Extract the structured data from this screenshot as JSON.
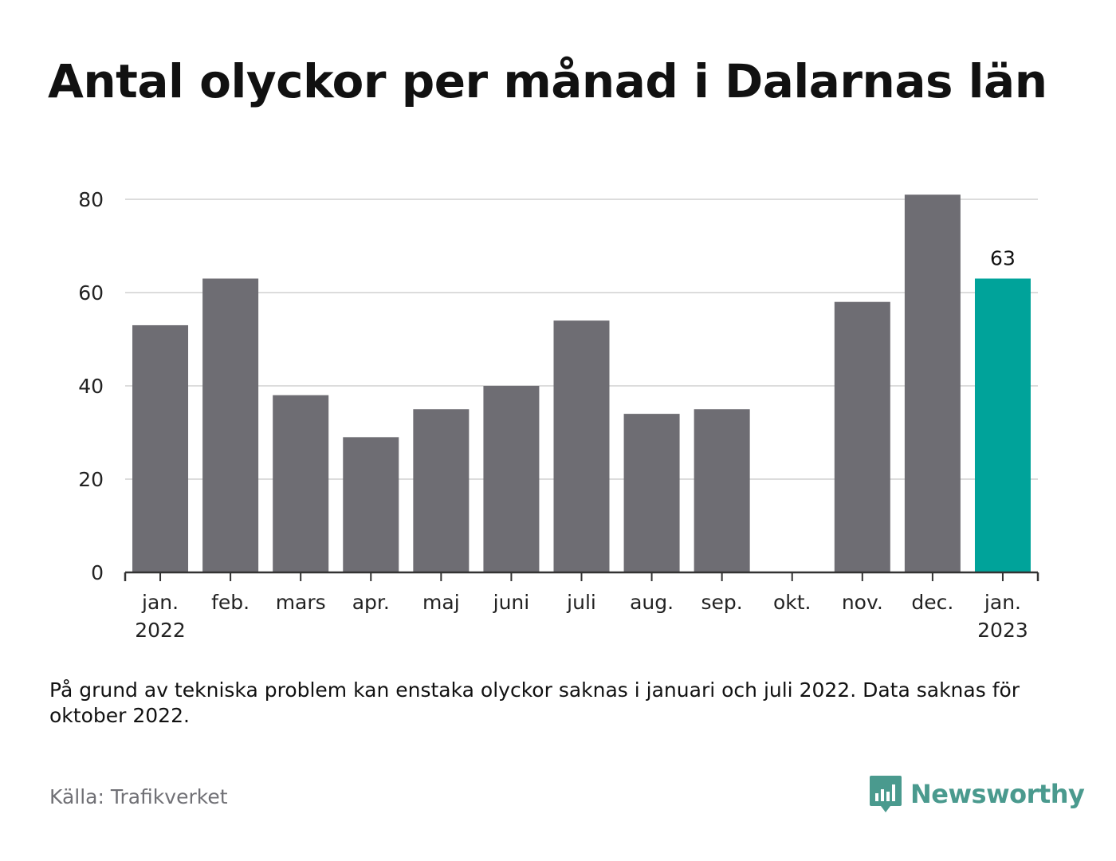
{
  "title": "Antal olyckor per månad i Dalarnas län",
  "note": "På grund av tekniska problem kan enstaka olyckor saknas i januari och juli 2022. Data saknas för oktober 2022.",
  "source": "Källa: Trafikverket",
  "logo": {
    "name": "Newsworthy",
    "icon": "newsworthy-logo-icon"
  },
  "colors": {
    "bar": "#6e6d73",
    "highlight": "#00a39a",
    "grid": "#dcdcdc",
    "axis": "#333333",
    "logo": "#4a9a8e"
  },
  "chart_data": {
    "type": "bar",
    "categories": [
      [
        "jan.",
        "2022"
      ],
      [
        "feb."
      ],
      [
        "mars"
      ],
      [
        "apr."
      ],
      [
        "maj"
      ],
      [
        "juni"
      ],
      [
        "juli"
      ],
      [
        "aug."
      ],
      [
        "sep."
      ],
      [
        "okt."
      ],
      [
        "nov."
      ],
      [
        "dec."
      ],
      [
        "jan.",
        "2023"
      ]
    ],
    "values": [
      53,
      63,
      38,
      29,
      35,
      40,
      54,
      34,
      35,
      null,
      58,
      81,
      63
    ],
    "highlight_index": 12,
    "data_labels": [
      {
        "index": 12,
        "text": "63"
      }
    ],
    "yticks": [
      0,
      20,
      40,
      60,
      80
    ],
    "ylim": [
      0,
      81
    ],
    "grid": true
  }
}
